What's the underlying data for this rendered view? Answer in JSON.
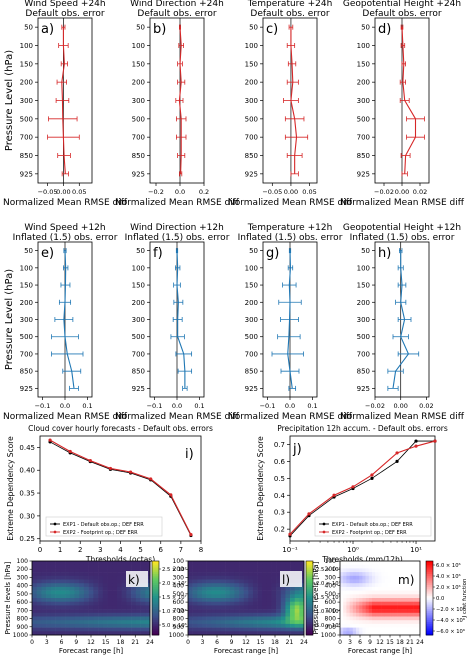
{
  "colors": {
    "red": "#d62728",
    "blue": "#1f77b4",
    "black": "#000000"
  },
  "chart_data": [
    {
      "id": "a",
      "panel": "a)",
      "type": "line",
      "title": [
        "Wind Speed +24h",
        "Default obs. error"
      ],
      "xlabel": "Normalized Mean RMSE diff",
      "ylabel": "Pressure Level (hPa)",
      "xlim": [
        -0.08,
        0.09
      ],
      "xticks": [
        -0.05,
        0.0,
        0.05
      ],
      "xticklabels": [
        "−0.05",
        "0.00",
        "0.05"
      ],
      "y": [
        50,
        100,
        150,
        200,
        300,
        500,
        700,
        850,
        925
      ],
      "yticklabels": [
        "50",
        "100",
        "150",
        "200",
        "300",
        "500",
        "700",
        "850",
        "925"
      ],
      "values": [
        0.0,
        0.0,
        0.003,
        -0.005,
        -0.003,
        -0.002,
        0.0,
        0.002,
        0.006
      ],
      "errors": [
        0.005,
        0.015,
        0.01,
        0.015,
        0.02,
        0.045,
        0.05,
        0.02,
        0.01
      ],
      "color": "red"
    },
    {
      "id": "b",
      "panel": "b)",
      "type": "line",
      "title": [
        "Wind Direction +24h",
        "Default obs. error"
      ],
      "xlabel": "Normalized Mean RMSE diff",
      "ylabel": "",
      "xlim": [
        -0.25,
        0.2
      ],
      "xticks": [
        -0.2,
        0.0,
        0.2
      ],
      "xticklabels": [
        "−0.2",
        "0.0",
        "0.2"
      ],
      "y": [
        50,
        100,
        150,
        200,
        300,
        500,
        700,
        850,
        925
      ],
      "yticklabels": [
        "50",
        "100",
        "150",
        "200",
        "300",
        "500",
        "700",
        "850",
        "925"
      ],
      "values": [
        0.0,
        0.01,
        0.0,
        0.01,
        -0.005,
        0.01,
        0.01,
        0.01,
        0.005
      ],
      "errors": [
        0.005,
        0.02,
        0.02,
        0.03,
        0.03,
        0.04,
        0.04,
        0.03,
        0.01
      ],
      "color": "red"
    },
    {
      "id": "c",
      "panel": "c)",
      "type": "line",
      "title": [
        "Temperature +24h",
        "Default obs. error"
      ],
      "xlabel": "Normalized Mean RMSE diff",
      "ylabel": "",
      "xlim": [
        -0.075,
        0.07
      ],
      "xticks": [
        -0.05,
        0.0,
        0.05
      ],
      "xticklabels": [
        "−0.05",
        "0.00",
        "0.05"
      ],
      "y": [
        50,
        100,
        150,
        200,
        300,
        500,
        700,
        850,
        925
      ],
      "yticklabels": [
        "50",
        "100",
        "150",
        "200",
        "300",
        "500",
        "700",
        "850",
        "925"
      ],
      "values": [
        0.0,
        0.0,
        0.003,
        0.005,
        0.0,
        0.01,
        0.015,
        0.01,
        0.01
      ],
      "errors": [
        0.005,
        0.01,
        0.01,
        0.015,
        0.02,
        0.025,
        0.03,
        0.02,
        0.01
      ],
      "color": "red"
    },
    {
      "id": "d",
      "panel": "d)",
      "type": "line",
      "title": [
        "Geopotential Height +24h",
        "Default obs. error"
      ],
      "xlabel": "Normalized Mean RMSE diff",
      "ylabel": "",
      "xlim": [
        -0.03,
        0.03
      ],
      "xticks": [
        -0.02,
        0.0,
        0.02
      ],
      "xticklabels": [
        "−0.02",
        "0.00",
        "0.02"
      ],
      "y": [
        50,
        100,
        150,
        200,
        300,
        500,
        700,
        850,
        925
      ],
      "yticklabels": [
        "50",
        "100",
        "150",
        "200",
        "300",
        "500",
        "700",
        "850",
        "925"
      ],
      "values": [
        0.0,
        0.001,
        0.002,
        0.001,
        0.003,
        0.015,
        0.015,
        0.004,
        0.003
      ],
      "errors": [
        0.001,
        0.002,
        0.002,
        0.003,
        0.005,
        0.01,
        0.01,
        0.005,
        0.003
      ],
      "color": "red"
    },
    {
      "id": "e",
      "panel": "e)",
      "type": "line",
      "title": [
        "Wind Speed +12h",
        "Inflated (1.5) obs. error"
      ],
      "xlabel": "Normalized Mean RMSE diff",
      "ylabel": "Pressure Level (hPa)",
      "xlim": [
        -0.12,
        0.12
      ],
      "xticks": [
        -0.1,
        0.0,
        0.1
      ],
      "xticklabels": [
        "−0.1",
        "0.0",
        "0.1"
      ],
      "y": [
        50,
        100,
        150,
        200,
        300,
        500,
        700,
        850,
        925
      ],
      "yticklabels": [
        "50",
        "100",
        "150",
        "200",
        "300",
        "500",
        "700",
        "850",
        "925"
      ],
      "values": [
        0.0,
        0.003,
        0.002,
        0.0,
        -0.005,
        0.0,
        0.01,
        0.03,
        0.04
      ],
      "errors": [
        0.005,
        0.01,
        0.02,
        0.025,
        0.04,
        0.06,
        0.07,
        0.04,
        0.02
      ],
      "color": "blue"
    },
    {
      "id": "f",
      "panel": "f)",
      "type": "line",
      "title": [
        "Wind Direction +12h",
        "Inflated (1.5) obs. error"
      ],
      "xlabel": "Normalized Mean RMSE diff",
      "ylabel": "",
      "xlim": [
        -0.12,
        0.12
      ],
      "xticks": [
        -0.1,
        0.0,
        0.1
      ],
      "xticklabels": [
        "−0.1",
        "0.0",
        "0.1"
      ],
      "y": [
        50,
        100,
        150,
        200,
        300,
        500,
        700,
        850,
        925
      ],
      "yticklabels": [
        "50",
        "100",
        "150",
        "200",
        "300",
        "500",
        "700",
        "850",
        "925"
      ],
      "values": [
        0.0,
        0.003,
        0.0,
        0.006,
        0.003,
        0.003,
        0.03,
        0.035,
        0.035
      ],
      "errors": [
        0.003,
        0.01,
        0.015,
        0.02,
        0.02,
        0.03,
        0.035,
        0.03,
        0.01
      ],
      "color": "blue"
    },
    {
      "id": "g",
      "panel": "g)",
      "type": "line",
      "title": [
        "Temperature +12h",
        "Inflated (1.5) obs. error"
      ],
      "xlabel": "Normalized Mean RMSE diff",
      "ylabel": "",
      "xlim": [
        -0.12,
        0.12
      ],
      "xticks": [
        -0.1,
        0.0,
        0.1
      ],
      "xticklabels": [
        "−0.1",
        "0.0",
        "0.1"
      ],
      "y": [
        50,
        100,
        150,
        200,
        300,
        500,
        700,
        850,
        925
      ],
      "yticklabels": [
        "50",
        "100",
        "150",
        "200",
        "300",
        "500",
        "700",
        "850",
        "925"
      ],
      "values": [
        0.0,
        0.002,
        -0.003,
        0.0,
        -0.002,
        -0.005,
        -0.01,
        0.0,
        0.01
      ],
      "errors": [
        0.003,
        0.01,
        0.03,
        0.05,
        0.04,
        0.05,
        0.07,
        0.04,
        0.015
      ],
      "color": "blue"
    },
    {
      "id": "h",
      "panel": "h)",
      "type": "line",
      "title": [
        "Geopotential Height +12h",
        "Inflated (1.5) obs. error"
      ],
      "xlabel": "Normalized Mean RMSE diff",
      "ylabel": "",
      "xlim": [
        -0.02,
        0.022
      ],
      "xticks": [
        -0.02,
        0.0,
        0.02
      ],
      "xticklabels": [
        "−0.02",
        "0.00",
        "0.02"
      ],
      "y": [
        50,
        100,
        150,
        200,
        300,
        500,
        700,
        850,
        925
      ],
      "yticklabels": [
        "50",
        "100",
        "150",
        "200",
        "300",
        "500",
        "700",
        "850",
        "925"
      ],
      "values": [
        0.0,
        0.0,
        0.001,
        0.0,
        0.003,
        0.0,
        0.006,
        -0.004,
        -0.006
      ],
      "errors": [
        0.001,
        0.002,
        0.003,
        0.004,
        0.005,
        0.006,
        0.008,
        0.006,
        0.004
      ],
      "color": "blue"
    },
    {
      "id": "i",
      "panel": "i)",
      "type": "line",
      "title": "Cloud cover hourly forecasts - Default obs. errors",
      "xlabel": "Thresholds (octas)",
      "ylabel": "Extreme Dependency Score",
      "xlim": [
        0,
        8
      ],
      "ylim": [
        0.245,
        0.475
      ],
      "xticks": [
        0,
        1,
        2,
        3,
        4,
        5,
        6,
        7,
        8
      ],
      "yticks": [
        0.25,
        0.3,
        0.35,
        0.4,
        0.45
      ],
      "yticklabels": [
        "0.25",
        "0.30",
        "0.35",
        "0.40",
        "0.45"
      ],
      "x": [
        0.5,
        1.5,
        2.5,
        3.5,
        4.5,
        5.5,
        6.5,
        7.5
      ],
      "series": [
        {
          "name": "EXP1 - Default obs.op.; DEF ERR",
          "values": [
            0.462,
            0.438,
            0.419,
            0.402,
            0.394,
            0.379,
            0.343,
            0.257
          ],
          "color": "black"
        },
        {
          "name": "EXP2 - Footprint op.; DEF ERR",
          "values": [
            0.466,
            0.441,
            0.421,
            0.404,
            0.396,
            0.381,
            0.346,
            0.259
          ],
          "color": "red"
        }
      ],
      "legend": "bottom-left"
    },
    {
      "id": "j",
      "panel": "j)",
      "type": "line",
      "title": "Precipitation 12h accum. - Default obs. errors",
      "xlabel": "Thresholds (mm/12h)",
      "ylabel": "Extreme Dependency Score",
      "xscale": "log",
      "xlim": [
        0.1,
        20
      ],
      "ylim": [
        0.13,
        0.75
      ],
      "xticks": [
        0.1,
        1,
        10
      ],
      "xticklabels": [
        "10⁻¹",
        "10⁰",
        "10¹"
      ],
      "yticks": [
        0.2,
        0.3,
        0.4,
        0.5,
        0.6,
        0.7
      ],
      "yticklabels": [
        "0.2",
        "0.3",
        "0.4",
        "0.5",
        "0.6",
        "0.7"
      ],
      "x": [
        0.1,
        0.2,
        0.5,
        1,
        2,
        5,
        10,
        20
      ],
      "series": [
        {
          "name": "EXP1 - Default obs.op.; DEF ERR",
          "values": [
            0.16,
            0.28,
            0.39,
            0.44,
            0.5,
            0.6,
            0.72,
            0.72
          ],
          "color": "black"
        },
        {
          "name": "EXP2 - Footprint op.; DEF ERR",
          "values": [
            0.17,
            0.29,
            0.4,
            0.45,
            0.52,
            0.65,
            0.69,
            0.72
          ],
          "color": "red"
        }
      ],
      "legend": "bottom-right"
    },
    {
      "id": "k",
      "panel": "k)",
      "type": "heatmap",
      "xlabel": "Forecast range [h]",
      "ylabel": "Pressure levels [hPa]",
      "xticks": [
        0,
        3,
        6,
        9,
        12,
        15,
        18,
        21,
        24
      ],
      "yticks": [
        100,
        200,
        300,
        400,
        500,
        600,
        700,
        800,
        900,
        1000
      ],
      "colormap": "viridis",
      "colorbar": {
        "label": "J cost function",
        "ticks": [
          "5.0 × 10⁶",
          "1.0 × 10⁷",
          "1.5 × 10⁷",
          "2.0 × 10⁷",
          "2.5 × 10⁷"
        ]
      }
    },
    {
      "id": "l",
      "panel": "l)",
      "type": "heatmap",
      "xlabel": "Forecast range [h]",
      "ylabel": "",
      "xticks": [
        0,
        3,
        6,
        9,
        12,
        15,
        18,
        21,
        24
      ],
      "yticks": [
        100,
        200,
        300,
        400,
        500,
        600,
        700,
        800,
        900,
        1000
      ],
      "colormap": "viridis",
      "colorbar": {
        "label": "J cost function",
        "ticks": [
          "5.0 × 10⁶",
          "1.0 × 10⁷",
          "1.5 × 10⁷",
          "2.0 × 10⁷",
          "2.5 × 10⁷"
        ]
      }
    },
    {
      "id": "m",
      "panel": "m)",
      "type": "heatmap",
      "xlabel": "Forecast range [h]",
      "ylabel": "Pressure levels [hPa]",
      "xticks": [
        0,
        3,
        6,
        9,
        12,
        15,
        18,
        21,
        24
      ],
      "yticks": [
        100,
        200,
        300,
        400,
        500,
        600,
        700,
        800,
        900,
        1000
      ],
      "colormap": "bwr",
      "colorbar": {
        "label": "J cost function",
        "ticks": [
          "6.0 × 10⁶",
          "4.0 × 10⁶",
          "2.0 × 10⁶",
          "0.0",
          "−2.0 × 10⁶",
          "−4.0 × 10⁶",
          "−6.0 × 10⁶"
        ]
      }
    }
  ]
}
